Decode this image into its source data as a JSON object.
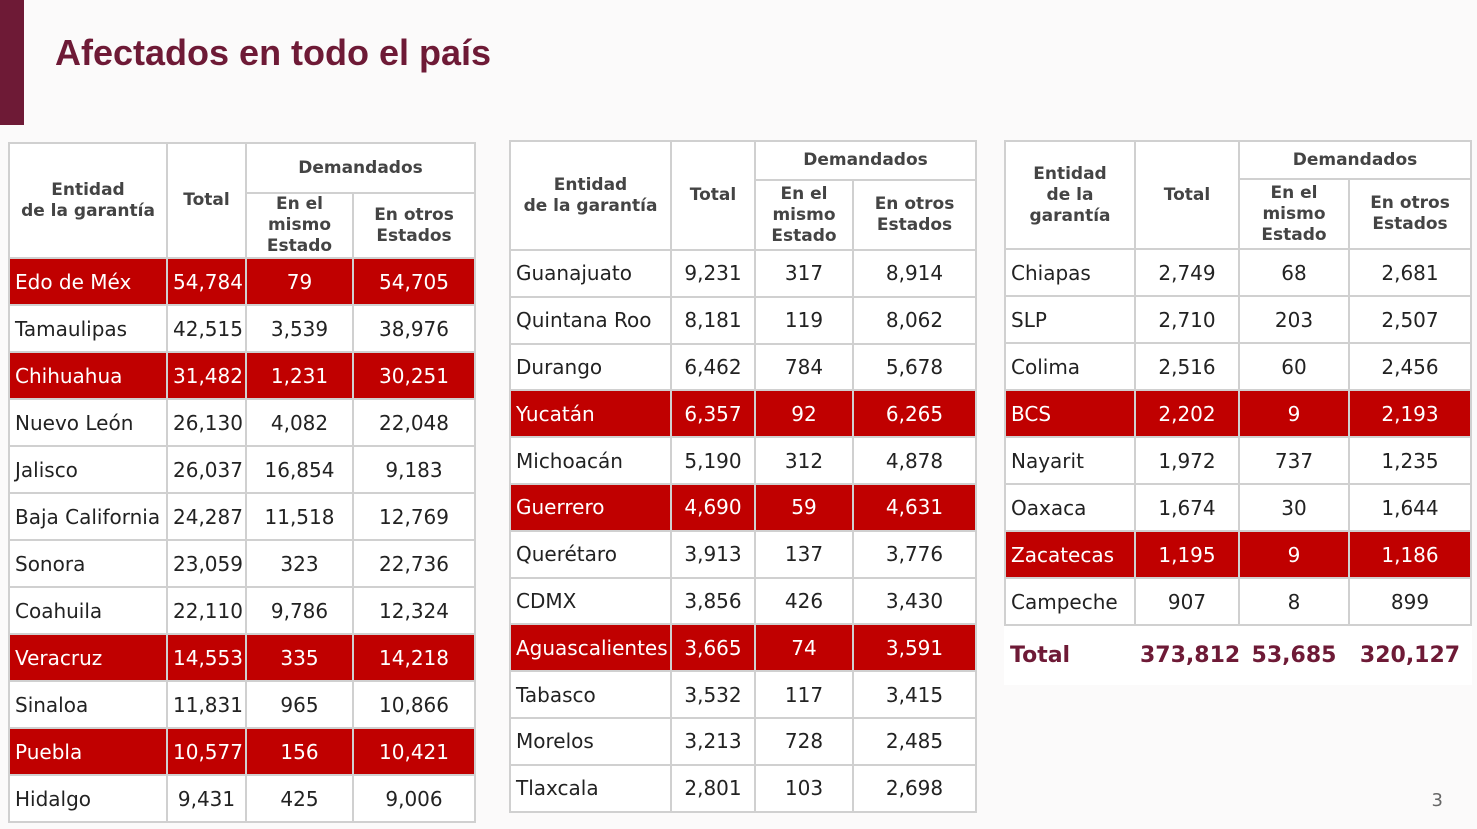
{
  "title": "Afectados en todo el país",
  "page_number": "3",
  "tables": [
    {
      "headers": {
        "entity": "Entidad\nde la garantía",
        "total": "Total",
        "demanded": "Demandados",
        "same_state": "En el\nmismo\nEstado",
        "other_states": "En otros\nEstados"
      },
      "rows": [
        {
          "cells": [
            "Edo de Méx",
            "54,784",
            "79",
            "54,705"
          ],
          "highlight": true
        },
        {
          "cells": [
            "Tamaulipas",
            "42,515",
            "3,539",
            "38,976"
          ]
        },
        {
          "cells": [
            "Chihuahua",
            "31,482",
            "1,231",
            "30,251"
          ],
          "highlight": true
        },
        {
          "cells": [
            "Nuevo León",
            "26,130",
            "4,082",
            "22,048"
          ]
        },
        {
          "cells": [
            "Jalisco",
            "26,037",
            "16,854",
            "9,183"
          ]
        },
        {
          "cells": [
            "Baja California",
            "24,287",
            "11,518",
            "12,769"
          ]
        },
        {
          "cells": [
            "Sonora",
            "23,059",
            "323",
            "22,736"
          ]
        },
        {
          "cells": [
            "Coahuila",
            "22,110",
            "9,786",
            "12,324"
          ]
        },
        {
          "cells": [
            "Veracruz",
            "14,553",
            "335",
            "14,218"
          ],
          "highlight": true
        },
        {
          "cells": [
            "Sinaloa",
            "11,831",
            "965",
            "10,866"
          ]
        },
        {
          "cells": [
            "Puebla",
            "10,577",
            "156",
            "10,421"
          ],
          "highlight": true
        },
        {
          "cells": [
            "Hidalgo",
            "9,431",
            "425",
            "9,006"
          ]
        }
      ]
    },
    {
      "headers": {
        "entity": "Entidad\nde la garantía",
        "total": "Total",
        "demanded": "Demandados",
        "same_state": "En el\nmismo\nEstado",
        "other_states": "En otros\nEstados"
      },
      "rows": [
        {
          "cells": [
            "Guanajuato",
            "9,231",
            "317",
            "8,914"
          ]
        },
        {
          "cells": [
            "Quintana Roo",
            "8,181",
            "119",
            "8,062"
          ]
        },
        {
          "cells": [
            "Durango",
            "6,462",
            "784",
            "5,678"
          ]
        },
        {
          "cells": [
            "Yucatán",
            "6,357",
            "92",
            "6,265"
          ],
          "highlight": true
        },
        {
          "cells": [
            "Michoacán",
            "5,190",
            "312",
            "4,878"
          ]
        },
        {
          "cells": [
            "Guerrero",
            "4,690",
            "59",
            "4,631"
          ],
          "highlight": true
        },
        {
          "cells": [
            "Querétaro",
            "3,913",
            "137",
            "3,776"
          ]
        },
        {
          "cells": [
            "CDMX",
            "3,856",
            "426",
            "3,430"
          ]
        },
        {
          "cells": [
            "Aguascalientes",
            "3,665",
            "74",
            "3,591"
          ],
          "highlight": true
        },
        {
          "cells": [
            "Tabasco",
            "3,532",
            "117",
            "3,415"
          ]
        },
        {
          "cells": [
            "Morelos",
            "3,213",
            "728",
            "2,485"
          ]
        },
        {
          "cells": [
            "Tlaxcala",
            "2,801",
            "103",
            "2,698"
          ]
        }
      ]
    },
    {
      "headers": {
        "entity": "Entidad\nde la\ngarantía",
        "total": "Total",
        "demanded": "Demandados",
        "same_state": "En el\nmismo\nEstado",
        "other_states": "En otros\nEstados"
      },
      "rows": [
        {
          "cells": [
            "Chiapas",
            "2,749",
            "68",
            "2,681"
          ]
        },
        {
          "cells": [
            "SLP",
            "2,710",
            "203",
            "2,507"
          ]
        },
        {
          "cells": [
            "Colima",
            "2,516",
            "60",
            "2,456"
          ]
        },
        {
          "cells": [
            "BCS",
            "2,202",
            "9",
            "2,193"
          ],
          "highlight": true
        },
        {
          "cells": [
            "Nayarit",
            "1,972",
            "737",
            "1,235"
          ]
        },
        {
          "cells": [
            "Oaxaca",
            "1,674",
            "30",
            "1,644"
          ]
        },
        {
          "cells": [
            "Zacatecas",
            "1,195",
            "9",
            "1,186"
          ],
          "highlight": true
        },
        {
          "cells": [
            "Campeche",
            "907",
            "8",
            "899"
          ]
        }
      ],
      "total": [
        "Total",
        "373,812",
        "53,685",
        "320,127"
      ]
    }
  ]
}
